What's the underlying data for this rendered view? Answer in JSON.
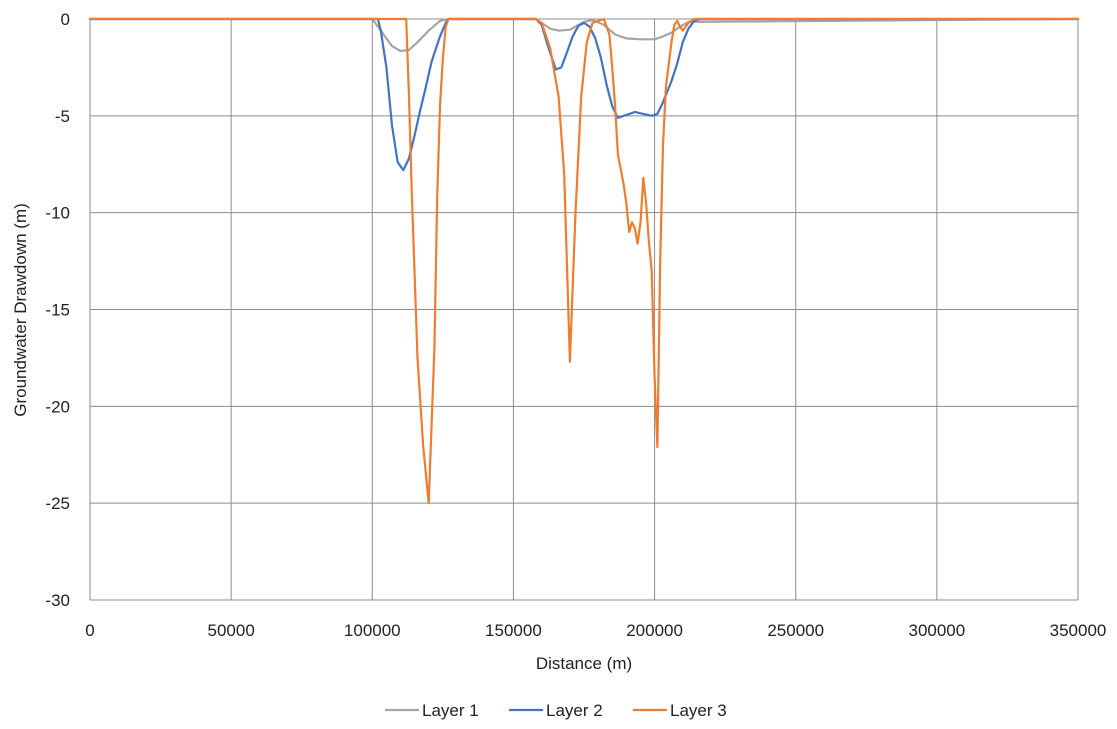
{
  "chart_data": {
    "type": "line",
    "xlabel": "Distance (m)",
    "ylabel": "Groundwater Drawdown (m)",
    "xlim": [
      0,
      350000
    ],
    "ylim": [
      -30,
      0
    ],
    "x_ticks": [
      0,
      50000,
      100000,
      150000,
      200000,
      250000,
      300000,
      350000
    ],
    "y_ticks": [
      0,
      -5,
      -10,
      -15,
      -20,
      -25,
      -30
    ],
    "x_tick_labels": [
      "0",
      "50000",
      "100000",
      "150000",
      "200000",
      "250000",
      "300000",
      "350000"
    ],
    "y_tick_labels": [
      "0",
      "-5",
      "-10",
      "-15",
      "-20",
      "-25",
      "-30"
    ],
    "grid": true,
    "legend_position": "bottom-center",
    "series": [
      {
        "name": "Layer 1",
        "color": "#a5a5a5",
        "x": [
          0,
          100000,
          101000,
          104000,
          107000,
          110000,
          113000,
          116000,
          120000,
          124000,
          127000,
          158000,
          160000,
          163000,
          166000,
          170000,
          175000,
          178000,
          182000,
          186000,
          190000,
          195000,
          200000,
          203000,
          206000,
          209000,
          212000,
          350000
        ],
        "y": [
          0,
          0,
          -0.2,
          -0.8,
          -1.4,
          -1.65,
          -1.6,
          -1.2,
          -0.6,
          -0.1,
          0,
          0,
          -0.2,
          -0.5,
          -0.6,
          -0.55,
          -0.15,
          -0.05,
          -0.3,
          -0.8,
          -1.0,
          -1.05,
          -1.05,
          -0.9,
          -0.7,
          -0.4,
          -0.15,
          0
        ]
      },
      {
        "name": "Layer 2",
        "color": "#4472c4",
        "x": [
          0,
          102000,
          103000,
          105000,
          107000,
          109000,
          111000,
          113000,
          115000,
          117000,
          119000,
          121000,
          124000,
          126000,
          127000,
          158000,
          160000,
          162000,
          165000,
          167000,
          169000,
          171000,
          173000,
          175000,
          177000,
          179000,
          181000,
          183000,
          185000,
          187000,
          190000,
          193000,
          196000,
          199000,
          201000,
          203000,
          206000,
          208000,
          210000,
          212000,
          214000,
          216000,
          350000
        ],
        "y": [
          0,
          0,
          -0.6,
          -2.5,
          -5.5,
          -7.4,
          -7.8,
          -7.2,
          -6.0,
          -4.7,
          -3.5,
          -2.2,
          -0.9,
          -0.2,
          0,
          0,
          -0.3,
          -1.3,
          -2.6,
          -2.5,
          -1.7,
          -0.9,
          -0.35,
          -0.2,
          -0.4,
          -1.0,
          -2.0,
          -3.4,
          -4.5,
          -5.1,
          -4.95,
          -4.8,
          -4.9,
          -5.0,
          -4.9,
          -4.3,
          -3.2,
          -2.3,
          -1.2,
          -0.5,
          -0.1,
          0,
          0
        ]
      },
      {
        "name": "Layer 3",
        "color": "#ed7d31",
        "x": [
          0,
          112000,
          113000,
          114000,
          116000,
          118000,
          120000,
          122000,
          123000,
          124000,
          125000,
          126000,
          127000,
          158000,
          160000,
          163000,
          166000,
          168000,
          170000,
          172000,
          174000,
          176000,
          178000,
          182000,
          184000,
          185000,
          186000,
          187000,
          189000,
          190000,
          191000,
          192000,
          193000,
          194000,
          195000,
          196000,
          197000,
          198000,
          199000,
          200000,
          201000,
          202000,
          203000,
          204000,
          206000,
          207000,
          208000,
          209000,
          210000,
          212000,
          214000,
          350000
        ],
        "y": [
          0,
          0,
          -4.0,
          -9.0,
          -17.5,
          -22.0,
          -25.0,
          -17.0,
          -9.2,
          -4.5,
          -2.0,
          -0.4,
          0,
          0,
          -0.2,
          -1.5,
          -4.0,
          -8.0,
          -17.7,
          -10.0,
          -4.0,
          -1.2,
          -0.2,
          0,
          -0.8,
          -2.5,
          -4.5,
          -7.0,
          -8.5,
          -9.5,
          -11.0,
          -10.5,
          -10.8,
          -11.6,
          -10.5,
          -8.2,
          -9.5,
          -11.5,
          -13.0,
          -18.5,
          -22.1,
          -12.5,
          -6.5,
          -3.5,
          -1.2,
          -0.3,
          -0.1,
          -0.4,
          -0.6,
          -0.2,
          0,
          0
        ]
      }
    ]
  }
}
